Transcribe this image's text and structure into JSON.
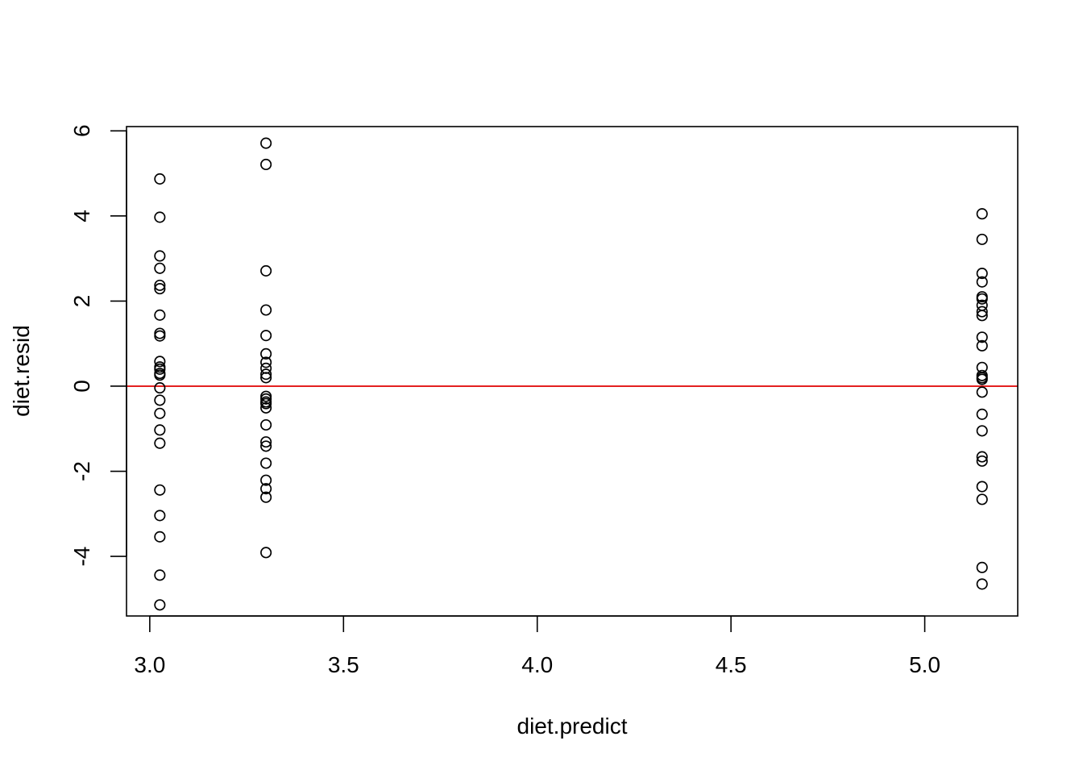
{
  "chart_data": {
    "type": "scatter",
    "title": "",
    "xlabel": "diet.predict",
    "ylabel": "diet.resid",
    "xlim": [
      2.94,
      5.24
    ],
    "ylim": [
      -5.4,
      6.1
    ],
    "x_ticks": [
      3.0,
      3.5,
      4.0,
      4.5,
      5.0
    ],
    "x_tick_labels": [
      "3.0",
      "3.5",
      "4.0",
      "4.5",
      "5.0"
    ],
    "y_ticks": [
      -4,
      -2,
      0,
      2,
      4,
      6
    ],
    "y_tick_labels": [
      "-4",
      "-2",
      "0",
      "2",
      "4",
      "6"
    ],
    "grid": false,
    "reference_line": {
      "y": 0,
      "color": "#e00000"
    },
    "marker": "open-circle",
    "series": [
      {
        "x": [
          3.026,
          3.026,
          3.026,
          3.026,
          3.026,
          3.026,
          3.026,
          3.026,
          3.026,
          3.026,
          3.026,
          3.026,
          3.026,
          3.026,
          3.026,
          3.026,
          3.026,
          3.026,
          3.026,
          3.026,
          3.026,
          3.026,
          3.026,
          3.026,
          3.3,
          3.3,
          3.3,
          3.3,
          3.3,
          3.3,
          3.3,
          3.3,
          3.3,
          3.3,
          3.3,
          3.3,
          3.3,
          3.3,
          3.3,
          3.3,
          3.3,
          3.3,
          3.3,
          3.3,
          3.3,
          3.3,
          3.3,
          5.148,
          5.148,
          5.148,
          5.148,
          5.148,
          5.148,
          5.148,
          5.148,
          5.148,
          5.148,
          5.148,
          5.148,
          5.148,
          5.148,
          5.148,
          5.148,
          5.148,
          5.148,
          5.148,
          5.148,
          5.148,
          5.148,
          5.148,
          5.148
        ],
        "y": [
          4.87,
          3.97,
          3.06,
          2.77,
          2.37,
          2.29,
          1.67,
          1.24,
          1.18,
          0.58,
          0.45,
          0.26,
          -0.04,
          -0.33,
          -0.64,
          -1.03,
          -1.34,
          -2.44,
          -3.04,
          -3.54,
          -4.44,
          -5.14,
          0.3,
          0.4,
          5.71,
          5.21,
          2.71,
          1.79,
          1.19,
          0.76,
          0.56,
          0.42,
          0.2,
          -0.24,
          -0.37,
          -0.41,
          -0.51,
          -0.91,
          -1.31,
          -1.41,
          -1.81,
          -2.21,
          -2.41,
          -2.61,
          -3.91,
          0.28,
          -0.3,
          4.05,
          3.45,
          2.65,
          2.45,
          2.1,
          2.05,
          1.75,
          1.66,
          1.15,
          0.95,
          0.44,
          0.25,
          0.16,
          -0.14,
          -0.66,
          -1.05,
          -1.66,
          -1.76,
          -2.36,
          -2.66,
          -4.26,
          -4.65,
          0.2,
          1.9
        ]
      }
    ]
  }
}
